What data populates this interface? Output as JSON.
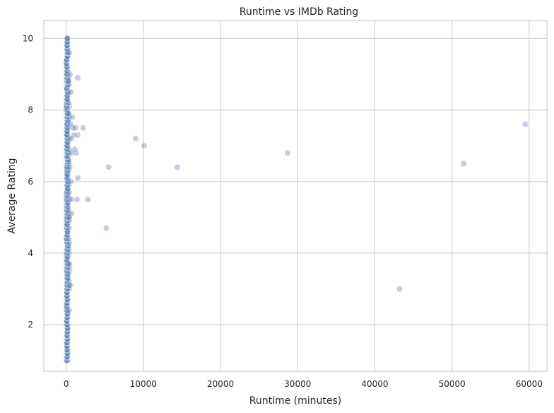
{
  "chart_data": {
    "type": "scatter",
    "title": "Runtime vs IMDb Rating",
    "xlabel": "Runtime (minutes)",
    "ylabel": "Average Rating",
    "xlim": [
      -2900,
      62300
    ],
    "ylim": [
      0.7,
      10.5
    ],
    "xticks": [
      0,
      10000,
      20000,
      30000,
      40000,
      50000,
      60000
    ],
    "xtick_labels": [
      "0",
      "10000",
      "20000",
      "30000",
      "40000",
      "50000",
      "60000"
    ],
    "yticks": [
      2,
      4,
      6,
      8,
      10
    ],
    "ytick_labels": [
      "2",
      "4",
      "6",
      "8",
      "10"
    ],
    "grid": true,
    "point_color": "#4c72b0",
    "point_alpha": 0.35,
    "dense_cluster": {
      "description_x_range": [
        0,
        200
      ],
      "y_range": [
        1.0,
        10.0
      ]
    },
    "points": [
      {
        "x": 59500,
        "y": 7.6
      },
      {
        "x": 51500,
        "y": 6.5
      },
      {
        "x": 43200,
        "y": 3.0
      },
      {
        "x": 28700,
        "y": 6.8
      },
      {
        "x": 14400,
        "y": 6.4
      },
      {
        "x": 10100,
        "y": 7.0
      },
      {
        "x": 9000,
        "y": 7.2
      },
      {
        "x": 5500,
        "y": 6.4
      },
      {
        "x": 5200,
        "y": 4.7
      },
      {
        "x": 2800,
        "y": 5.5
      },
      {
        "x": 2200,
        "y": 7.5
      },
      {
        "x": 1500,
        "y": 8.9
      },
      {
        "x": 1500,
        "y": 6.1
      },
      {
        "x": 1400,
        "y": 5.5
      },
      {
        "x": 1500,
        "y": 7.3
      },
      {
        "x": 1300,
        "y": 6.8
      },
      {
        "x": 1200,
        "y": 7.5
      },
      {
        "x": 1100,
        "y": 6.9
      },
      {
        "x": 1000,
        "y": 7.3
      },
      {
        "x": 900,
        "y": 7.5
      },
      {
        "x": 800,
        "y": 7.8
      },
      {
        "x": 700,
        "y": 5.1
      },
      {
        "x": 700,
        "y": 5.5
      },
      {
        "x": 700,
        "y": 6.8
      },
      {
        "x": 650,
        "y": 7.2
      },
      {
        "x": 600,
        "y": 8.5
      },
      {
        "x": 600,
        "y": 6.0
      },
      {
        "x": 550,
        "y": 7.6
      },
      {
        "x": 500,
        "y": 9.0
      },
      {
        "x": 500,
        "y": 3.1
      },
      {
        "x": 450,
        "y": 3.7
      },
      {
        "x": 450,
        "y": 6.4
      },
      {
        "x": 400,
        "y": 9.6
      },
      {
        "x": 400,
        "y": 5.0
      },
      {
        "x": 380,
        "y": 2.4
      },
      {
        "x": 350,
        "y": 7.9
      },
      {
        "x": 300,
        "y": 8.8
      }
    ]
  }
}
